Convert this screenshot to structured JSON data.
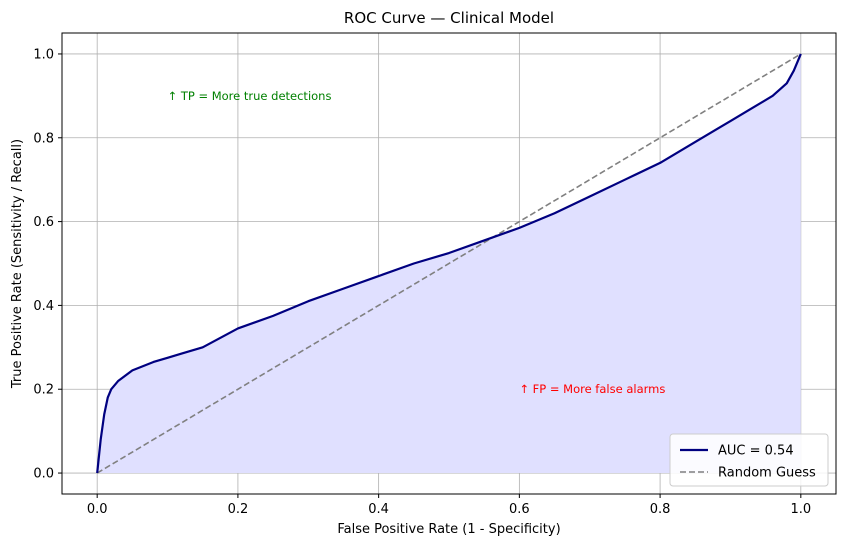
{
  "chart_data": {
    "type": "line",
    "title": "ROC Curve — Clinical Model",
    "xlabel": "False Positive Rate (1 - Specificity)",
    "ylabel": "True Positive Rate (Sensitivity / Recall)",
    "xlim": [
      -0.05,
      1.05
    ],
    "ylim": [
      -0.05,
      1.05
    ],
    "xticks": [
      0.0,
      0.2,
      0.4,
      0.6,
      0.8,
      1.0
    ],
    "yticks": [
      0.0,
      0.2,
      0.4,
      0.6,
      0.8,
      1.0
    ],
    "xtick_labels": [
      "0.0",
      "0.2",
      "0.4",
      "0.6",
      "0.8",
      "1.0"
    ],
    "ytick_labels": [
      "0.0",
      "0.2",
      "0.4",
      "0.6",
      "0.8",
      "1.0"
    ],
    "grid": true,
    "legend_position": "lower-right",
    "series": [
      {
        "name": "AUC = 0.54",
        "color": "#000080",
        "style": "solid",
        "fill": "#e0e0ff",
        "x": [
          0.0,
          0.005,
          0.01,
          0.015,
          0.02,
          0.03,
          0.05,
          0.08,
          0.1,
          0.12,
          0.15,
          0.2,
          0.25,
          0.3,
          0.35,
          0.4,
          0.45,
          0.5,
          0.55,
          0.6,
          0.65,
          0.7,
          0.75,
          0.8,
          0.85,
          0.9,
          0.93,
          0.96,
          0.98,
          0.99,
          1.0
        ],
        "y": [
          0.0,
          0.08,
          0.14,
          0.18,
          0.2,
          0.22,
          0.245,
          0.265,
          0.275,
          0.285,
          0.3,
          0.345,
          0.375,
          0.41,
          0.44,
          0.47,
          0.5,
          0.525,
          0.555,
          0.585,
          0.62,
          0.66,
          0.7,
          0.74,
          0.79,
          0.84,
          0.87,
          0.9,
          0.93,
          0.96,
          1.0
        ]
      },
      {
        "name": "Random Guess",
        "color": "#808080",
        "style": "dashed",
        "x": [
          0.0,
          1.0
        ],
        "y": [
          0.0,
          1.0
        ]
      }
    ],
    "annotations": [
      {
        "text": "↑ TP = More true detections",
        "x": 0.1,
        "y": 0.9,
        "color": "#008000"
      },
      {
        "text": "↑ FP = More false alarms",
        "x": 0.6,
        "y": 0.2,
        "color": "#ff0000"
      }
    ]
  }
}
